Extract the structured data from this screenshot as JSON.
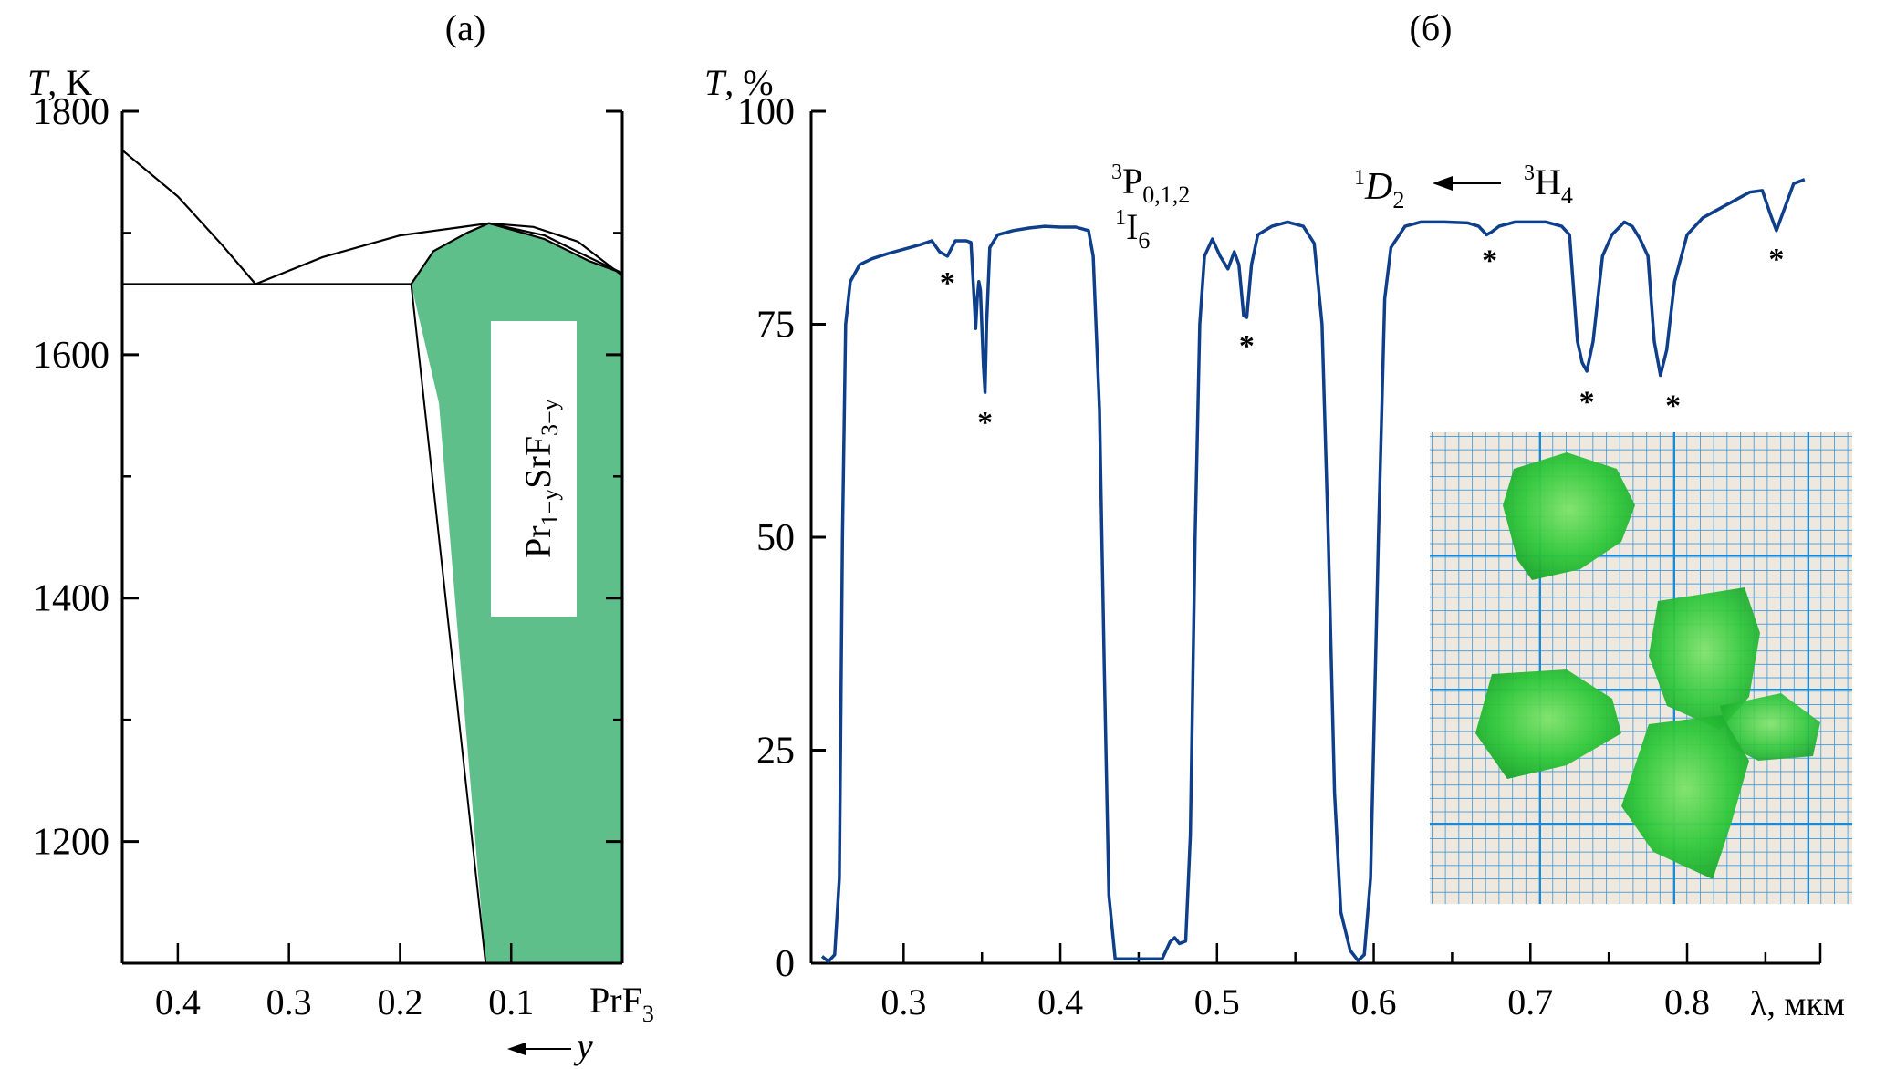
{
  "chart_data": [
    {
      "id": "a",
      "type": "area",
      "panel_label": "(a)",
      "title": "",
      "ylabel_italic": "T",
      "ylabel_rest": ", K",
      "xlabel_arrow": "←",
      "xlabel": "y",
      "xlim": [
        0.45,
        0.0
      ],
      "ylim": [
        1100,
        1800
      ],
      "yticks_major": [
        1200,
        1400,
        1600,
        1800
      ],
      "yticks_minor": [
        1300,
        1500,
        1700
      ],
      "xticks": [
        0.4,
        0.3,
        0.2,
        0.1
      ],
      "xtick_labels": [
        "0.4",
        "0.3",
        "0.2",
        "0.1"
      ],
      "x_end_label_main": "PrF",
      "x_end_label_sub": "3",
      "region_color": "#5fbf8a",
      "phase_label": {
        "main1": "Pr",
        "sub1": "1−y",
        "main2": "SrF",
        "sub2": "3−y"
      },
      "lines": [
        {
          "name": "liquidus-left",
          "points": [
            [
              0.45,
              1768
            ],
            [
              0.4,
              1730
            ],
            [
              0.36,
              1690
            ],
            [
              0.33,
              1658
            ]
          ]
        },
        {
          "name": "liquidus-right",
          "points": [
            [
              0.33,
              1658
            ],
            [
              0.27,
              1680
            ],
            [
              0.2,
              1698
            ],
            [
              0.12,
              1708
            ],
            [
              0.08,
              1705
            ],
            [
              0.04,
              1693
            ],
            [
              0.0,
              1665
            ]
          ]
        },
        {
          "name": "eutectic-horizontal",
          "points": [
            [
              0.45,
              1658
            ],
            [
              0.19,
              1658
            ]
          ]
        },
        {
          "name": "solidus-upper",
          "points": [
            [
              0.12,
              1708
            ],
            [
              0.07,
              1698
            ],
            [
              0.03,
              1680
            ],
            [
              0.0,
              1667
            ]
          ]
        }
      ],
      "solid_solution_region": [
        [
          0.19,
          1658
        ],
        [
          0.17,
          1685
        ],
        [
          0.14,
          1700
        ],
        [
          0.12,
          1708
        ],
        [
          0.07,
          1695
        ],
        [
          0.03,
          1677
        ],
        [
          0.0,
          1667
        ],
        [
          0.0,
          1100
        ],
        [
          0.123,
          1100
        ],
        [
          0.147,
          1360
        ],
        [
          0.165,
          1560
        ],
        [
          0.19,
          1658
        ]
      ]
    },
    {
      "id": "b",
      "type": "line",
      "panel_label": "(б)",
      "title": "",
      "ylabel_italic": "T",
      "ylabel_rest": ", %",
      "xlabel": "λ, мкм",
      "xlim": [
        0.241,
        0.885
      ],
      "ylim": [
        0,
        100
      ],
      "yticks": [
        0,
        25,
        50,
        75,
        100
      ],
      "ytick_labels": [
        "0",
        "25",
        "50",
        "75",
        "100"
      ],
      "xticks_major": [
        0.3,
        0.4,
        0.5,
        0.6,
        0.7,
        0.8
      ],
      "xtick_labels": [
        "0.3",
        "0.4",
        "0.5",
        "0.6",
        "0.7",
        "0.8"
      ],
      "xticks_minor": [
        0.35,
        0.45,
        0.55,
        0.65,
        0.75,
        0.85
      ],
      "line_color": "#0f3f8a",
      "series": [
        {
          "name": "transmission",
          "points": [
            [
              0.248,
              0.8
            ],
            [
              0.252,
              0.2
            ],
            [
              0.256,
              1.0
            ],
            [
              0.259,
              10
            ],
            [
              0.261,
              50
            ],
            [
              0.263,
              75
            ],
            [
              0.266,
              80
            ],
            [
              0.272,
              82
            ],
            [
              0.28,
              82.7
            ],
            [
              0.29,
              83.3
            ],
            [
              0.3,
              83.8
            ],
            [
              0.31,
              84.3
            ],
            [
              0.318,
              84.8
            ],
            [
              0.323,
              83.5
            ],
            [
              0.328,
              83.0
            ],
            [
              0.333,
              84.8
            ],
            [
              0.34,
              84.8
            ],
            [
              0.343,
              84.6
            ],
            [
              0.345,
              78
            ],
            [
              0.346,
              74.5
            ],
            [
              0.347,
              78
            ],
            [
              0.348,
              80
            ],
            [
              0.349,
              79
            ],
            [
              0.351,
              70
            ],
            [
              0.352,
              67
            ],
            [
              0.353,
              75
            ],
            [
              0.355,
              84
            ],
            [
              0.36,
              85.5
            ],
            [
              0.37,
              86.0
            ],
            [
              0.38,
              86.3
            ],
            [
              0.39,
              86.5
            ],
            [
              0.4,
              86.4
            ],
            [
              0.41,
              86.4
            ],
            [
              0.418,
              86.0
            ],
            [
              0.421,
              83
            ],
            [
              0.425,
              65
            ],
            [
              0.428,
              35
            ],
            [
              0.431,
              8
            ],
            [
              0.435,
              0.5
            ],
            [
              0.45,
              0.5
            ],
            [
              0.465,
              0.5
            ],
            [
              0.47,
              2.5
            ],
            [
              0.473,
              3.0
            ],
            [
              0.476,
              2.3
            ],
            [
              0.48,
              2.6
            ],
            [
              0.483,
              15
            ],
            [
              0.486,
              50
            ],
            [
              0.489,
              75
            ],
            [
              0.492,
              83
            ],
            [
              0.497,
              85
            ],
            [
              0.502,
              83
            ],
            [
              0.507,
              81.5
            ],
            [
              0.511,
              83.5
            ],
            [
              0.514,
              82
            ],
            [
              0.517,
              76
            ],
            [
              0.519,
              75.8
            ],
            [
              0.522,
              82
            ],
            [
              0.526,
              85.5
            ],
            [
              0.535,
              86.5
            ],
            [
              0.545,
              87.0
            ],
            [
              0.555,
              86.5
            ],
            [
              0.562,
              84.5
            ],
            [
              0.567,
              75
            ],
            [
              0.571,
              50
            ],
            [
              0.575,
              20
            ],
            [
              0.579,
              6
            ],
            [
              0.585,
              1.5
            ],
            [
              0.59,
              0.3
            ],
            [
              0.594,
              1.0
            ],
            [
              0.598,
              10
            ],
            [
              0.603,
              50
            ],
            [
              0.607,
              78
            ],
            [
              0.611,
              84
            ],
            [
              0.62,
              86.5
            ],
            [
              0.63,
              87.0
            ],
            [
              0.645,
              87.0
            ],
            [
              0.66,
              86.9
            ],
            [
              0.667,
              86.5
            ],
            [
              0.672,
              85.5
            ],
            [
              0.675,
              85.8
            ],
            [
              0.68,
              86.5
            ],
            [
              0.69,
              87.0
            ],
            [
              0.71,
              87.0
            ],
            [
              0.72,
              86.5
            ],
            [
              0.725,
              85.5
            ],
            [
              0.73,
              73
            ],
            [
              0.733,
              70.5
            ],
            [
              0.736,
              69.5
            ],
            [
              0.74,
              73
            ],
            [
              0.746,
              83
            ],
            [
              0.752,
              85.5
            ],
            [
              0.76,
              87.0
            ],
            [
              0.765,
              86.5
            ],
            [
              0.77,
              85
            ],
            [
              0.775,
              83
            ],
            [
              0.779,
              73
            ],
            [
              0.783,
              69
            ],
            [
              0.787,
              72
            ],
            [
              0.792,
              80
            ],
            [
              0.8,
              85.5
            ],
            [
              0.81,
              87.5
            ],
            [
              0.825,
              89.0
            ],
            [
              0.84,
              90.5
            ],
            [
              0.848,
              90.7
            ],
            [
              0.853,
              88
            ],
            [
              0.857,
              86.0
            ],
            [
              0.862,
              88.5
            ],
            [
              0.868,
              91.5
            ],
            [
              0.875,
              92.0
            ]
          ]
        }
      ],
      "asterisks": [
        {
          "x": 0.328,
          "y": 80.2
        },
        {
          "x": 0.352,
          "y": 63.8
        },
        {
          "x": 0.519,
          "y": 72.8
        },
        {
          "x": 0.674,
          "y": 82.8
        },
        {
          "x": 0.736,
          "y": 66.2
        },
        {
          "x": 0.791,
          "y": 65.8
        },
        {
          "x": 0.857,
          "y": 83.0
        }
      ],
      "annotations": {
        "transition1_sup": "3",
        "transition1_main": "P",
        "transition1_sub": "0,1,2",
        "transition2_sup": "1",
        "transition2_main": "I",
        "transition2_sub": "6",
        "final_state_sup": "1",
        "final_state_main": "D",
        "final_state_sub": "2",
        "arrow": "←",
        "initial_state_sup": "3",
        "initial_state_main": "H",
        "initial_state_sub": "4"
      },
      "inset": {
        "description": "photo of green crystal fragments on blue graph paper"
      }
    }
  ]
}
